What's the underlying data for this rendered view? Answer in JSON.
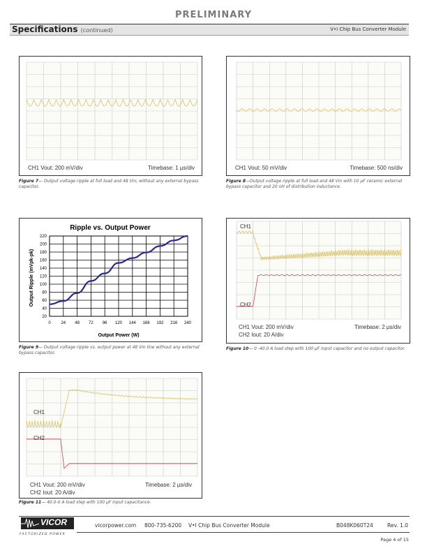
{
  "header": {
    "preliminary": "PRELIMINARY",
    "section": "Specifications",
    "section_note": "(continued)",
    "product": "V•I Chip Bus Converter Module"
  },
  "figures": {
    "fig7": {
      "ch1": "CH1 Vout: 200 mV/div",
      "timebase": "Timebase: 1 µs/div",
      "caption_label": "Figure 7",
      "caption": "— Output voltage ripple at full load and 48 Vin; without any external bypass capacitor."
    },
    "fig8": {
      "ch1": "CH1 Vout: 50 mV/div",
      "timebase": "Timebase: 500 ns/div",
      "caption_label": "Figure 8",
      "caption": "—Output voltage ripple at full load and 48 Vin with 10 µF ceramic external bypass capacitor and 20 nH of distribution inductance."
    },
    "fig9": {
      "caption_label": "Figure 9",
      "caption": "— Output voltage ripple vs. output power at 48 Vin line without any external bypass capacitor."
    },
    "fig10": {
      "ch1_tag": "CH1",
      "ch2_tag": "CH2",
      "ch1": "CH1 Vout: 200 mV/div",
      "ch2": "CH2 Iout: 20 A/div",
      "timebase": "Timebase: 2 µs/div",
      "caption_label": "Figure 10",
      "caption": "— 0 -40.0 A load step with 100 µF input capacitor and no output capacitor."
    },
    "fig11": {
      "ch1_tag": "CH1",
      "ch2_tag": "CH2",
      "ch1": "CH1 Vout: 200 mV/div",
      "ch2": "CH2 Iout: 20 A/div",
      "timebase": "Timebase: 2 µs/div",
      "caption_label": "Figure 11",
      "caption": "— 40.0-0 A load step with 100 µF input capacitance."
    }
  },
  "chart_data": {
    "type": "line",
    "title": "Ripple vs. Output Power",
    "xlabel": "Output Power (W)",
    "ylabel": "Output Ripple (mVpk-pk)",
    "x": [
      0,
      24,
      48,
      72,
      96,
      120,
      144,
      168,
      192,
      216,
      240
    ],
    "series": [
      {
        "name": "Ripple",
        "values": [
          50,
          58,
          78,
          108,
          127,
          153,
          165,
          179,
          195,
          209,
          220
        ],
        "color": "#2b2b8c"
      }
    ],
    "xticks": [
      "0",
      "24",
      "48",
      "72",
      "96",
      "120",
      "144",
      "168",
      "192",
      "216",
      "240"
    ],
    "yticks": [
      "20",
      "40",
      "60",
      "80",
      "100",
      "120",
      "140",
      "160",
      "180",
      "200",
      "220"
    ],
    "xlim": [
      0,
      240
    ],
    "ylim": [
      20,
      220
    ],
    "grid": true
  },
  "footer": {
    "logo": "VICOR",
    "tagline": "FACTORIZED POWER",
    "website": "vicorpower.com",
    "phone": "800-735-6200",
    "product": "V•I Chip Bus Converter Module",
    "part": "B048K060T24",
    "rev": "Rev. 1.0",
    "page": "Page 4 of 15"
  },
  "colors": {
    "ch1": "#d8c060",
    "ch2": "#d0405a",
    "grid": "#c8c8c8",
    "scope_bg": "#fbfbf7"
  }
}
